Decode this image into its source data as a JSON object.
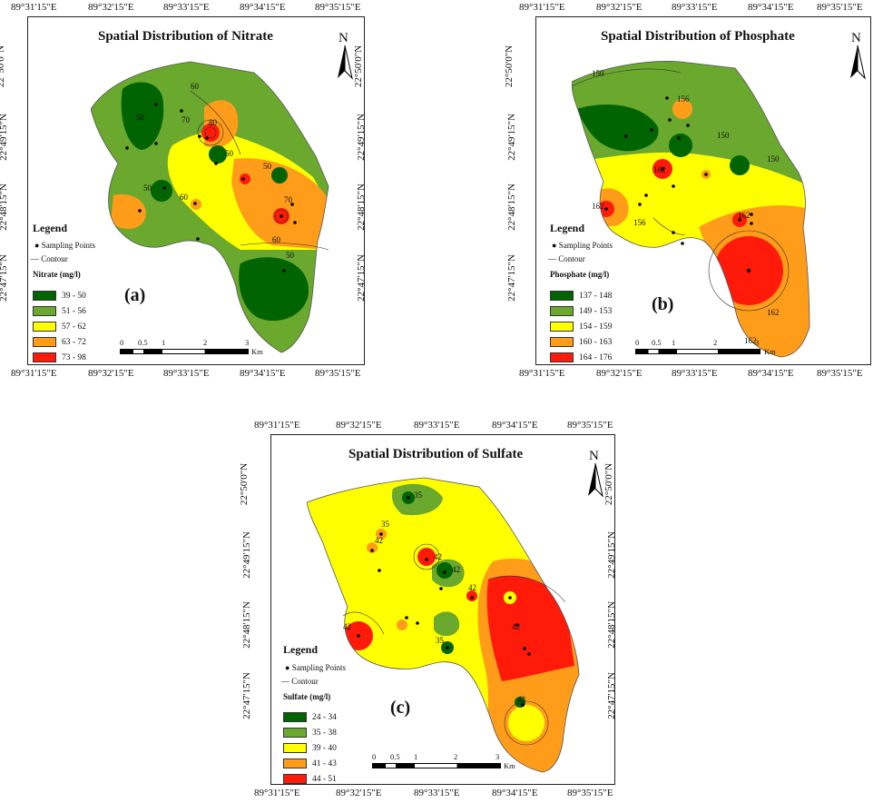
{
  "coords": {
    "top_lon": [
      "89°31'15\"E",
      "89°32'15\"E",
      "89°33'15\"E",
      "89°34'15\"E",
      "89°35'15\"E"
    ],
    "bottom_lon": [
      "89°31'15\"E",
      "89°32'15\"E",
      "89°33'15\"E",
      "89°34'15\"E",
      "89°35'15\"E"
    ],
    "lat": [
      "22°50'0\"N",
      "22°49'15\"N",
      "22°48'15\"N",
      "22°47'15\"N"
    ],
    "lat_bold_tick": "22°48'15\"N"
  },
  "legend_common": {
    "title": "Legend",
    "sampling_points": "Sampling Points",
    "contour": "Contour",
    "scale_units": "Km",
    "scale_ticks": [
      "0",
      "0.5",
      "1",
      "2",
      "3"
    ],
    "north": "N"
  },
  "panels": [
    {
      "id": "a",
      "label": "(a)",
      "title": "Spatial Distribution of Nitrate",
      "param": "Nitrate (mg/l)",
      "classes": [
        {
          "range": "39 - 50",
          "color": "#006400"
        },
        {
          "range": "51 - 56",
          "color": "#6aa82e"
        },
        {
          "range": "57 - 62",
          "color": "#ffff00"
        },
        {
          "range": "63 - 72",
          "color": "#ff9d1a"
        },
        {
          "range": "73 - 98",
          "color": "#ff1a0a"
        }
      ],
      "contour_labels": [
        "60",
        "70",
        "50",
        "80",
        "50",
        "50",
        "60",
        "50",
        "60",
        "70",
        "50"
      ]
    },
    {
      "id": "b",
      "label": "(b)",
      "title": "Spatial Distribution of Phosphate",
      "param": "Phosphate (mg/l)",
      "classes": [
        {
          "range": "137 - 148",
          "color": "#006400"
        },
        {
          "range": "149 - 153",
          "color": "#6aa82e"
        },
        {
          "range": "154 - 159",
          "color": "#ffff00"
        },
        {
          "range": "160 - 163",
          "color": "#ff9d1a"
        },
        {
          "range": "164 - 176",
          "color": "#ff1a0a"
        }
      ],
      "contour_labels": [
        "150",
        "156",
        "150",
        "162",
        "150",
        "162",
        "156",
        "162",
        "162",
        "162"
      ]
    },
    {
      "id": "c",
      "label": "(c)",
      "title": "Spatial Distribution of Sulfate",
      "param": "Sulfate (mg/l)",
      "classes": [
        {
          "range": "24 - 34",
          "color": "#006400"
        },
        {
          "range": "35 - 38",
          "color": "#6aa82e"
        },
        {
          "range": "39 - 40",
          "color": "#ffff00"
        },
        {
          "range": "41 - 43",
          "color": "#ff9d1a"
        },
        {
          "range": "44 - 51",
          "color": "#ff1a0a"
        }
      ],
      "contour_labels": [
        "35",
        "42",
        "35",
        "42",
        "42",
        "42",
        "42",
        "35",
        "42",
        "42"
      ]
    }
  ]
}
